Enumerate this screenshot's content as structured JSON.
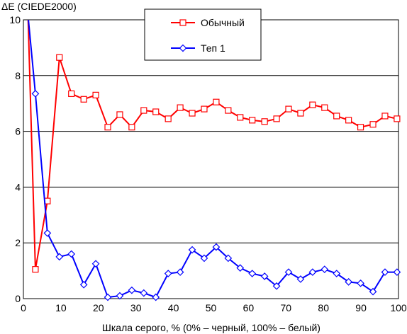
{
  "chart_data": {
    "type": "line",
    "ylabel": "ΔE (CIEDE2000)",
    "xlabel": "Шкала серого, % (0% – черный, 100% – белый)",
    "xlim": [
      0,
      100
    ],
    "ylim": [
      0,
      10
    ],
    "x_ticks": [
      0,
      10,
      20,
      30,
      40,
      50,
      60,
      70,
      80,
      90,
      100
    ],
    "y_ticks": [
      0,
      2,
      4,
      6,
      8,
      10
    ],
    "grid": "horizontal",
    "legend_position": "top-center",
    "x": [
      1.2,
      3.2,
      6.4,
      9.6,
      12.8,
      16.1,
      19.3,
      22.5,
      25.7,
      28.9,
      32.1,
      35.3,
      38.6,
      41.8,
      45.0,
      48.2,
      51.4,
      54.6,
      57.8,
      61.0,
      64.3,
      67.5,
      70.7,
      73.9,
      77.1,
      80.3,
      83.5,
      86.7,
      89.9,
      93.2,
      96.4,
      99.6
    ],
    "series": [
      {
        "name": "Обычный",
        "color": "#ff0000",
        "marker": "square",
        "values": [
          10.3,
          1.05,
          3.5,
          8.65,
          7.35,
          7.15,
          7.3,
          6.15,
          6.6,
          6.15,
          6.75,
          6.7,
          6.45,
          6.85,
          6.65,
          6.8,
          7.05,
          6.75,
          6.5,
          6.4,
          6.35,
          6.45,
          6.8,
          6.65,
          6.95,
          6.85,
          6.55,
          6.4,
          6.15,
          6.25,
          6.55,
          6.45
        ]
      },
      {
        "name": "Теп 1",
        "color": "#0000ff",
        "marker": "diamond",
        "values": [
          10.2,
          7.35,
          2.35,
          1.5,
          1.6,
          0.5,
          1.25,
          0.05,
          0.1,
          0.3,
          0.2,
          0.05,
          0.9,
          0.95,
          1.75,
          1.45,
          1.85,
          1.45,
          1.1,
          0.9,
          0.8,
          0.45,
          0.95,
          0.7,
          0.95,
          1.05,
          0.9,
          0.6,
          0.55,
          0.25,
          0.95,
          0.95
        ]
      }
    ]
  }
}
